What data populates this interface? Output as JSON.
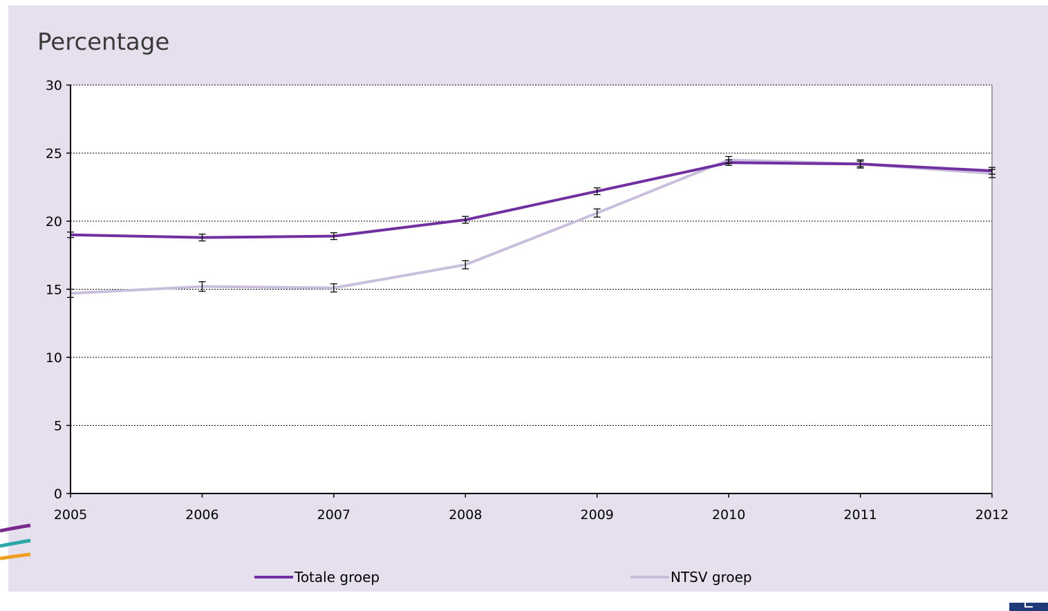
{
  "chart_data": {
    "type": "line",
    "title": "",
    "ylabel": "Percentage",
    "xlabel": "",
    "x": [
      2005,
      2006,
      2007,
      2008,
      2009,
      2010,
      2011,
      2012
    ],
    "ylim": [
      0,
      30
    ],
    "yticks": [
      0,
      5,
      10,
      15,
      20,
      25,
      30
    ],
    "grid": true,
    "legend": "bottom",
    "series": [
      {
        "name": "Totale groep",
        "color": "#7030a0",
        "values": [
          19.0,
          18.8,
          18.9,
          20.1,
          22.2,
          24.3,
          24.2,
          23.7
        ],
        "err": [
          0.2,
          0.25,
          0.25,
          0.25,
          0.25,
          0.2,
          0.2,
          0.25
        ]
      },
      {
        "name": "NTSV groep",
        "color": "#c9bedc",
        "values": [
          14.7,
          15.2,
          15.1,
          16.8,
          20.6,
          24.5,
          24.2,
          23.5
        ],
        "err": [
          0.3,
          0.35,
          0.3,
          0.3,
          0.3,
          0.25,
          0.3,
          0.3
        ]
      }
    ]
  },
  "brand": {
    "corner_color": "#1f3a78"
  }
}
